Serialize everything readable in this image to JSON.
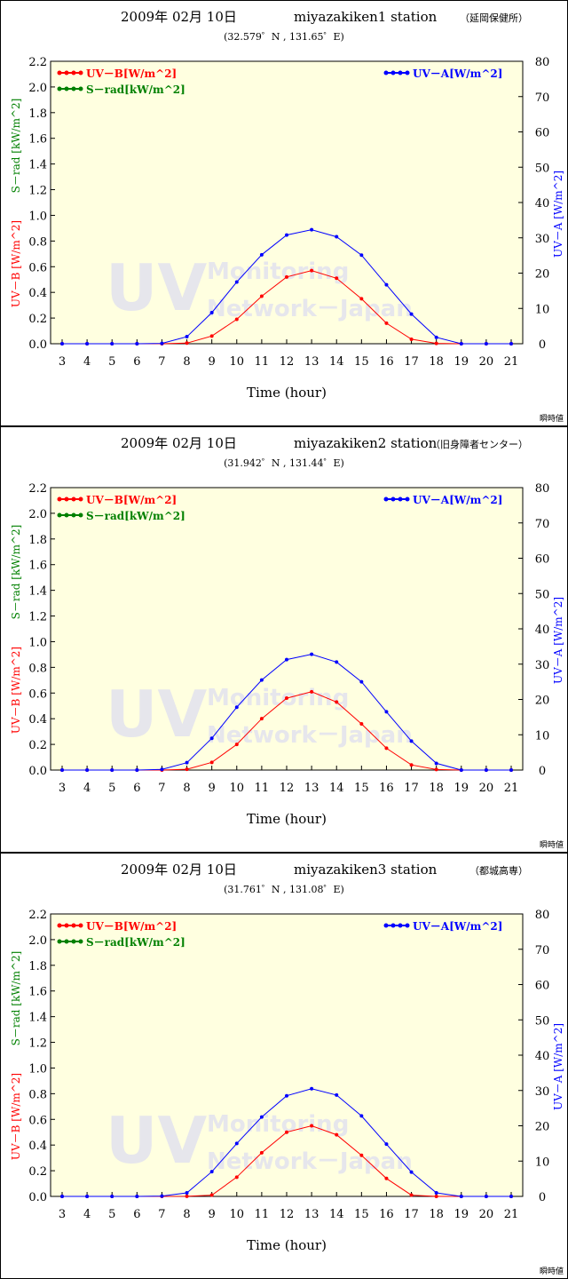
{
  "colors": {
    "uvb": "#ff0000",
    "srad": "#008000",
    "uva": "#0000ff",
    "plot_bg": "#ffffe0"
  },
  "chart_data": [
    {
      "type": "line",
      "title": "2009年 02月 10日",
      "station": "miyazakiken1 station",
      "station_note": "（延岡保健所）",
      "coords": "(32.579゜N , 131.65゜E)",
      "xlabel": "Time (hour)",
      "ylabel_left": "UV－B [W/m^2]",
      "ylabel_left2": "S－rad [kW/m^2]",
      "ylabel_right": "UV－A [W/m^2]",
      "ylim_left": [
        0,
        2.2
      ],
      "ylim_right": [
        0,
        80
      ],
      "x": [
        3,
        4,
        5,
        6,
        7,
        8,
        9,
        10,
        11,
        12,
        13,
        14,
        15,
        16,
        17,
        18,
        19,
        20,
        21
      ],
      "yticks_left": [
        "0.0",
        "0.2",
        "0.4",
        "0.6",
        "0.8",
        "1.0",
        "1.2",
        "1.4",
        "1.6",
        "1.8",
        "2.0",
        "2.2"
      ],
      "yticks_right": [
        "0",
        "10",
        "20",
        "30",
        "40",
        "50",
        "60",
        "70",
        "80"
      ],
      "legend_uvb": "UV－B[W/m^2]",
      "legend_srad": "S－rad[kW/m^2]",
      "legend_uva": "UV－A[W/m^2]",
      "watermark_1": "UV",
      "watermark_2": "Monitoring",
      "watermark_3": "Network－Japan",
      "note": "瞬時値",
      "series": [
        {
          "name": "UV－B[W/m^2]",
          "axis": "left",
          "values": [
            0,
            0,
            0,
            0,
            0,
            0.005,
            0.06,
            0.19,
            0.37,
            0.52,
            0.57,
            0.51,
            0.35,
            0.16,
            0.035,
            0.003,
            0,
            0,
            0
          ]
        },
        {
          "name": "UV－A[W/m^2]",
          "axis": "right",
          "values": [
            0,
            0,
            0,
            0,
            0.1,
            2.0,
            8.8,
            17.5,
            25.2,
            30.8,
            32.3,
            30.3,
            25.1,
            16.7,
            8.4,
            1.8,
            0,
            0,
            0
          ]
        }
      ]
    },
    {
      "type": "line",
      "title": "2009年 02月 10日",
      "station": "miyazakiken2 station",
      "station_note": "（旧身障者センター）",
      "coords": "(31.942゜N , 131.44゜E)",
      "xlabel": "Time (hour)",
      "ylabel_left": "UV－B [W/m^2]",
      "ylabel_left2": "S－rad [kW/m^2]",
      "ylabel_right": "UV－A [W/m^2]",
      "ylim_left": [
        0,
        2.2
      ],
      "ylim_right": [
        0,
        80
      ],
      "x": [
        3,
        4,
        5,
        6,
        7,
        8,
        9,
        10,
        11,
        12,
        13,
        14,
        15,
        16,
        17,
        18,
        19,
        20,
        21
      ],
      "yticks_left": [
        "0.0",
        "0.2",
        "0.4",
        "0.6",
        "0.8",
        "1.0",
        "1.2",
        "1.4",
        "1.6",
        "1.8",
        "2.0",
        "2.2"
      ],
      "yticks_right": [
        "0",
        "10",
        "20",
        "30",
        "40",
        "50",
        "60",
        "70",
        "80"
      ],
      "legend_uvb": "UV－B[W/m^2]",
      "legend_srad": "S－rad[kW/m^2]",
      "legend_uva": "UV－A[W/m^2]",
      "watermark_1": "UV",
      "watermark_2": "Monitoring",
      "watermark_3": "Network－Japan",
      "note": "瞬時値",
      "series": [
        {
          "name": "UV－B[W/m^2]",
          "axis": "left",
          "values": [
            0,
            0,
            0,
            0,
            0,
            0.006,
            0.06,
            0.2,
            0.4,
            0.56,
            0.61,
            0.53,
            0.36,
            0.17,
            0.04,
            0.004,
            0,
            0,
            0
          ]
        },
        {
          "name": "UV－A[W/m^2]",
          "axis": "right",
          "values": [
            0,
            0,
            0,
            0,
            0.2,
            2.1,
            9.0,
            17.8,
            25.5,
            31.3,
            32.8,
            30.6,
            25.0,
            16.5,
            8.2,
            1.9,
            0,
            0,
            0
          ]
        }
      ]
    },
    {
      "type": "line",
      "title": "2009年 02月 10日",
      "station": "miyazakiken3 station",
      "station_note": "（都城高専）",
      "coords": "(31.761゜N , 131.08゜E)",
      "xlabel": "Time (hour)",
      "ylabel_left": "UV－B [W/m^2]",
      "ylabel_left2": "S－rad [kW/m^2]",
      "ylabel_right": "UV－A [W/m^2]",
      "ylim_left": [
        0,
        2.2
      ],
      "ylim_right": [
        0,
        80
      ],
      "x": [
        3,
        4,
        5,
        6,
        7,
        8,
        9,
        10,
        11,
        12,
        13,
        14,
        15,
        16,
        17,
        18,
        19,
        20,
        21
      ],
      "yticks_left": [
        "0.0",
        "0.2",
        "0.4",
        "0.6",
        "0.8",
        "1.0",
        "1.2",
        "1.4",
        "1.6",
        "1.8",
        "2.0",
        "2.2"
      ],
      "yticks_right": [
        "0",
        "10",
        "20",
        "30",
        "40",
        "50",
        "60",
        "70",
        "80"
      ],
      "legend_uvb": "UV－B[W/m^2]",
      "legend_srad": "S－rad[kW/m^2]",
      "legend_uva": "UV－A[W/m^2]",
      "watermark_1": "UV",
      "watermark_2": "Monitoring",
      "watermark_3": "Network－Japan",
      "note": "瞬時値",
      "series": [
        {
          "name": "UV－B[W/m^2]",
          "axis": "left",
          "values": [
            0,
            0,
            0,
            0,
            0,
            0.001,
            0.01,
            0.15,
            0.34,
            0.5,
            0.55,
            0.48,
            0.32,
            0.14,
            0.01,
            0,
            0,
            0,
            0
          ]
        },
        {
          "name": "UV－A[W/m^2]",
          "axis": "right",
          "values": [
            0,
            0,
            0,
            0,
            0.1,
            1.0,
            7.0,
            15.0,
            22.5,
            28.5,
            30.5,
            28.7,
            22.8,
            14.8,
            6.9,
            1.0,
            0,
            0,
            0
          ]
        }
      ]
    }
  ]
}
